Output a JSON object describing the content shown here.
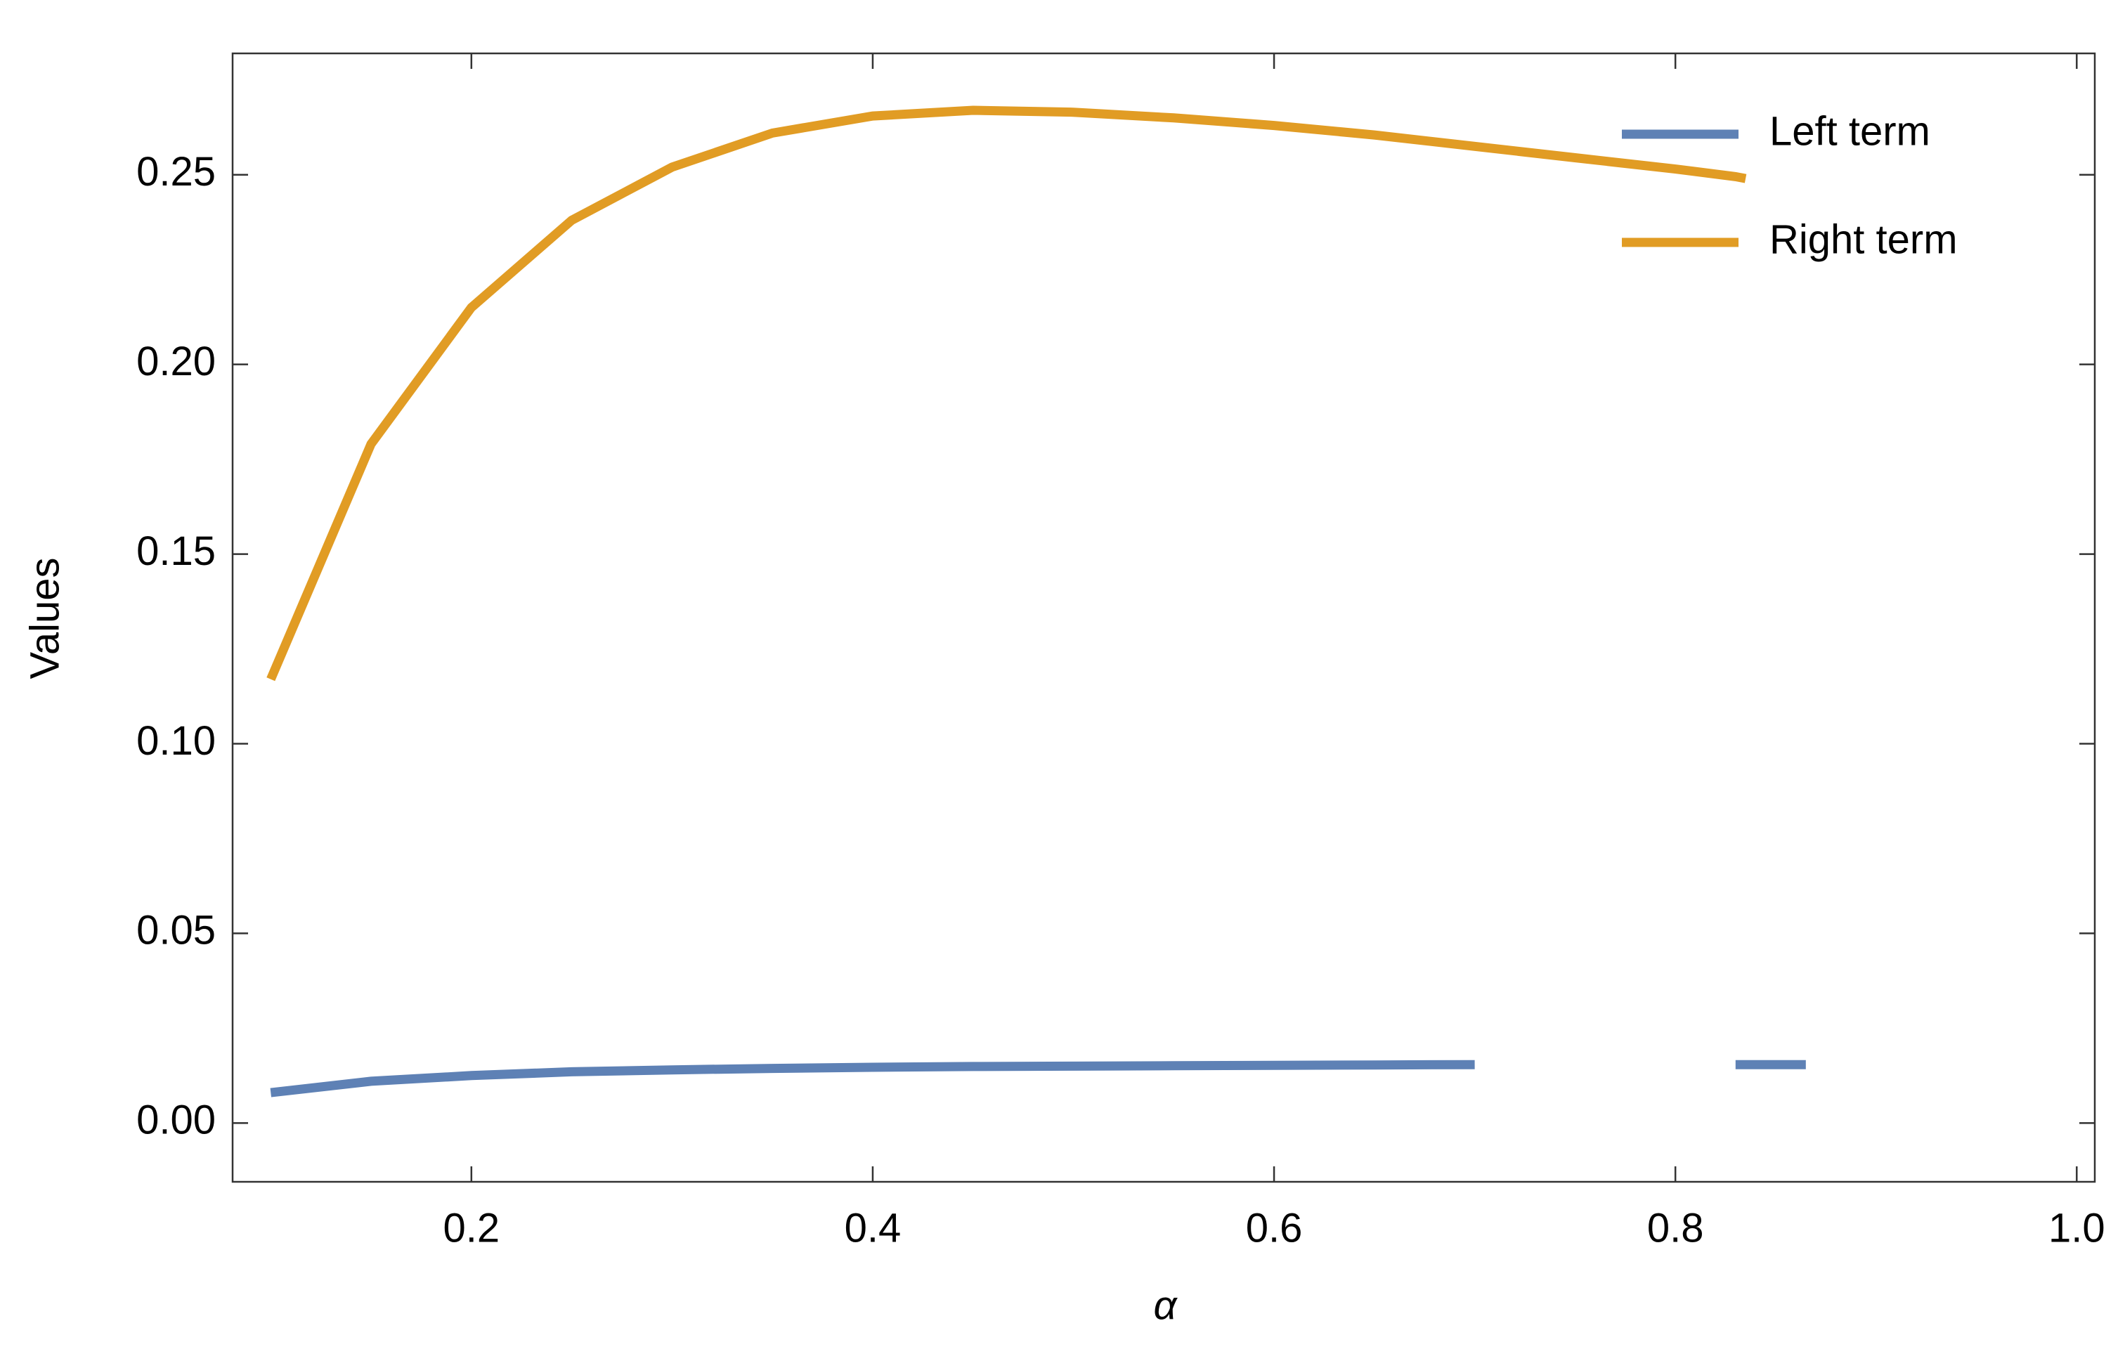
{
  "chart_data": {
    "type": "line",
    "xlabel": "α",
    "ylabel": "Values",
    "x": [
      0.1,
      0.15,
      0.2,
      0.25,
      0.3,
      0.35,
      0.4,
      0.45,
      0.5,
      0.55,
      0.6,
      0.65,
      0.7,
      0.75,
      0.8,
      0.83,
      0.835,
      0.865
    ],
    "series": [
      {
        "name": "Left term",
        "color": "#5e81b5",
        "values": [
          0.008,
          0.011,
          0.0125,
          0.0135,
          0.014,
          0.0144,
          0.0147,
          0.0149,
          0.015,
          0.0151,
          0.0152,
          0.0153,
          0.0154,
          null,
          null,
          0.0154,
          0.0154,
          0.0154
        ]
      },
      {
        "name": "Right term",
        "color": "#e19c24",
        "values": [
          0.117,
          0.179,
          0.215,
          0.238,
          0.252,
          0.261,
          0.2655,
          0.267,
          0.2665,
          0.265,
          0.263,
          0.2605,
          0.2575,
          0.2545,
          0.2515,
          0.2495,
          0.249,
          null
        ]
      }
    ],
    "xlim": [
      0.081,
      1.009
    ],
    "ylim": [
      -0.0155,
      0.282
    ],
    "xticks": [
      0.2,
      0.4,
      0.6,
      0.8,
      {
        "value": 1,
        "label": "1.0"
      }
    ],
    "yticks": [
      {
        "value": 0,
        "label": "0.00"
      },
      0.05,
      {
        "value": 0.1,
        "label": "0.10"
      },
      0.15,
      {
        "value": 0.2,
        "label": "0.20"
      },
      0.25
    ],
    "legend": "top-right",
    "grid": false
  }
}
